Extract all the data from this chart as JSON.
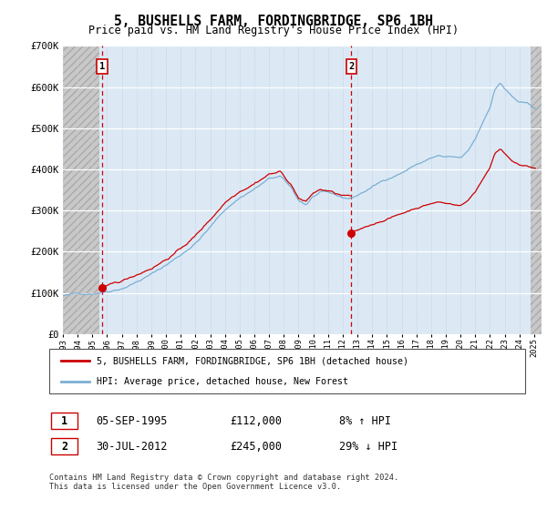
{
  "title": "5, BUSHELLS FARM, FORDINGBRIDGE, SP6 1BH",
  "subtitle": "Price paid vs. HM Land Registry's House Price Index (HPI)",
  "ylim": [
    0,
    700000
  ],
  "yticks": [
    0,
    100000,
    200000,
    300000,
    400000,
    500000,
    600000,
    700000
  ],
  "ytick_labels": [
    "£0",
    "£100K",
    "£200K",
    "£300K",
    "£400K",
    "£500K",
    "£600K",
    "£700K"
  ],
  "sale1_x": 1995.67,
  "sale1_price": 112000,
  "sale2_x": 2012.58,
  "sale2_price": 245000,
  "legend1_text": "5, BUSHELLS FARM, FORDINGBRIDGE, SP6 1BH (detached house)",
  "legend2_text": "HPI: Average price, detached house, New Forest",
  "table_row1": [
    "1",
    "05-SEP-1995",
    "£112,000",
    "8% ↑ HPI"
  ],
  "table_row2": [
    "2",
    "30-JUL-2012",
    "£245,000",
    "29% ↓ HPI"
  ],
  "footnote": "Contains HM Land Registry data © Crown copyright and database right 2024.\nThis data is licensed under the Open Government Licence v3.0.",
  "line_color_property": "#cc0000",
  "line_color_hpi": "#7bafd4",
  "plot_bg_color": "#dce9f5",
  "grid_color": "#ffffff",
  "hatch_color": "#c8c8c8",
  "xmin": 1993.0,
  "xmax": 2025.5,
  "hatch_left_end": 1995.5,
  "hatch_right_start": 2024.75
}
